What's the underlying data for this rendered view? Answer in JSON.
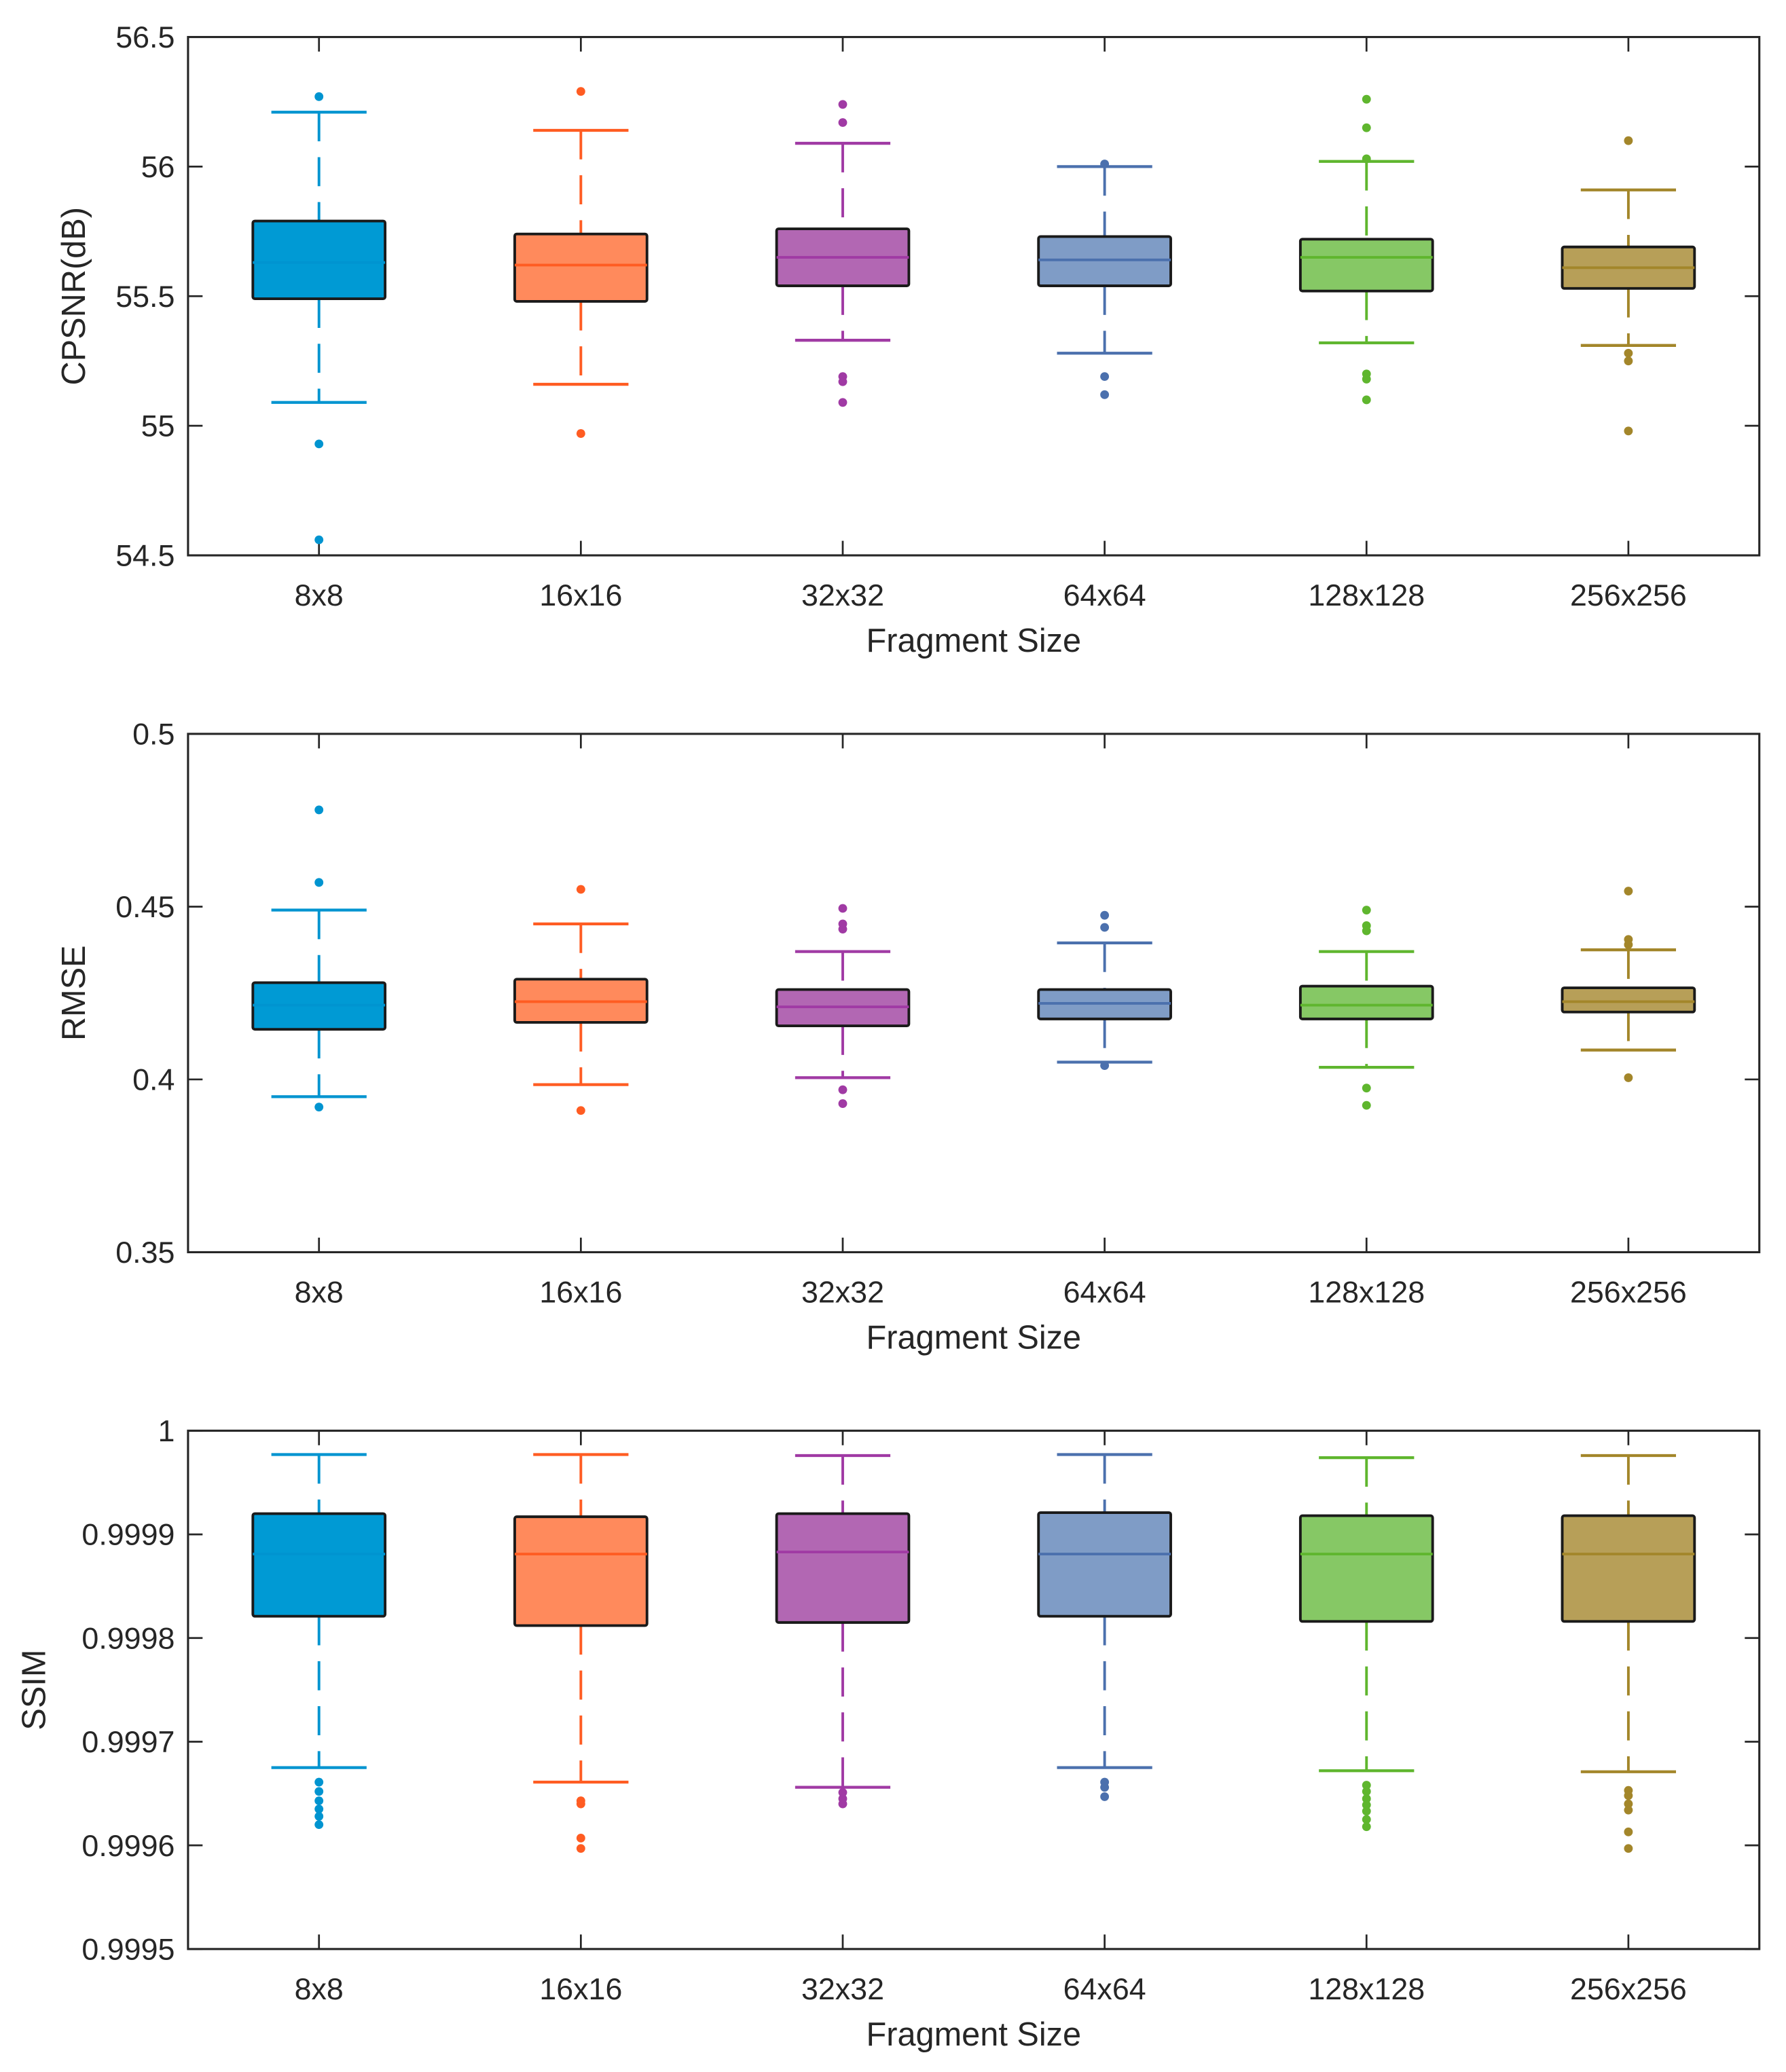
{
  "chart_data": [
    {
      "type": "box",
      "ylabel": "CPSNR(dB)",
      "xlabel": "Fragment Size",
      "categories": [
        "8x8",
        "16x16",
        "32x32",
        "64x64",
        "128x128",
        "256x256"
      ],
      "ylim": [
        54.5,
        56.5
      ],
      "yticks": [
        "54.5",
        "55",
        "55.5",
        "56",
        "56.5"
      ],
      "series": [
        {
          "whisker_high": 56.21,
          "q3": 55.79,
          "median": 55.63,
          "q1": 55.49,
          "whisker_low": 55.09,
          "outliers": [
            56.27,
            54.93,
            54.56
          ]
        },
        {
          "whisker_high": 56.14,
          "q3": 55.74,
          "median": 55.62,
          "q1": 55.48,
          "whisker_low": 55.16,
          "outliers": [
            56.29,
            54.97
          ]
        },
        {
          "whisker_high": 56.09,
          "q3": 55.76,
          "median": 55.65,
          "q1": 55.54,
          "whisker_low": 55.33,
          "outliers": [
            56.24,
            56.17,
            55.19,
            55.17,
            55.09
          ]
        },
        {
          "whisker_high": 56.0,
          "q3": 55.73,
          "median": 55.64,
          "q1": 55.54,
          "whisker_low": 55.28,
          "outliers": [
            56.01,
            55.19,
            55.12
          ]
        },
        {
          "whisker_high": 56.02,
          "q3": 55.72,
          "median": 55.65,
          "q1": 55.52,
          "whisker_low": 55.32,
          "outliers": [
            56.26,
            56.15,
            56.03,
            55.2,
            55.18,
            55.1
          ]
        },
        {
          "whisker_high": 55.91,
          "q3": 55.69,
          "median": 55.61,
          "q1": 55.53,
          "whisker_low": 55.31,
          "outliers": [
            56.1,
            55.28,
            55.25,
            54.98
          ]
        }
      ]
    },
    {
      "type": "box",
      "ylabel": "RMSE",
      "xlabel": "Fragment Size",
      "categories": [
        "8x8",
        "16x16",
        "32x32",
        "64x64",
        "128x128",
        "256x256"
      ],
      "ylim": [
        0.35,
        0.5
      ],
      "yticks": [
        "0.35",
        "0.4",
        "0.45",
        "0.5"
      ],
      "series": [
        {
          "whisker_high": 0.449,
          "q3": 0.428,
          "median": 0.4215,
          "q1": 0.4145,
          "whisker_low": 0.395,
          "outliers": [
            0.478,
            0.457,
            0.392
          ]
        },
        {
          "whisker_high": 0.445,
          "q3": 0.429,
          "median": 0.4225,
          "q1": 0.4165,
          "whisker_low": 0.3985,
          "outliers": [
            0.455,
            0.391
          ]
        },
        {
          "whisker_high": 0.437,
          "q3": 0.426,
          "median": 0.421,
          "q1": 0.4155,
          "whisker_low": 0.4005,
          "outliers": [
            0.4495,
            0.445,
            0.4435,
            0.397,
            0.393
          ]
        },
        {
          "whisker_high": 0.4395,
          "q3": 0.426,
          "median": 0.422,
          "q1": 0.4175,
          "whisker_low": 0.405,
          "outliers": [
            0.4475,
            0.444,
            0.404
          ]
        },
        {
          "whisker_high": 0.437,
          "q3": 0.427,
          "median": 0.4215,
          "q1": 0.4175,
          "whisker_low": 0.4035,
          "outliers": [
            0.449,
            0.4445,
            0.443,
            0.3975,
            0.3925
          ]
        },
        {
          "whisker_high": 0.4375,
          "q3": 0.4265,
          "median": 0.4225,
          "q1": 0.4195,
          "whisker_low": 0.4085,
          "outliers": [
            0.4545,
            0.4405,
            0.439,
            0.4005
          ]
        }
      ]
    },
    {
      "type": "box",
      "ylabel": "SSIM",
      "xlabel": "Fragment Size",
      "categories": [
        "8x8",
        "16x16",
        "32x32",
        "64x64",
        "128x128",
        "256x256"
      ],
      "ylim": [
        0.9995,
        1
      ],
      "yticks": [
        "0.9995",
        "0.9996",
        "0.9997",
        "0.9998",
        "0.9999",
        "1"
      ],
      "series": [
        {
          "whisker_high": 0.999977,
          "q3": 0.99992,
          "median": 0.999881,
          "q1": 0.999821,
          "whisker_low": 0.999675,
          "outliers": [
            0.999661,
            0.999652,
            0.999643,
            0.999635,
            0.999628,
            0.99962
          ]
        },
        {
          "whisker_high": 0.999977,
          "q3": 0.999917,
          "median": 0.999881,
          "q1": 0.999812,
          "whisker_low": 0.999661,
          "outliers": [
            0.999643,
            0.99964,
            0.999607,
            0.999597
          ]
        },
        {
          "whisker_high": 0.999976,
          "q3": 0.99992,
          "median": 0.999883,
          "q1": 0.999815,
          "whisker_low": 0.999656,
          "outliers": [
            0.999651,
            0.999645,
            0.99964
          ]
        },
        {
          "whisker_high": 0.999977,
          "q3": 0.999921,
          "median": 0.999881,
          "q1": 0.999821,
          "whisker_low": 0.999675,
          "outliers": [
            0.999661,
            0.999656,
            0.999647
          ]
        },
        {
          "whisker_high": 0.999974,
          "q3": 0.999918,
          "median": 0.999881,
          "q1": 0.999816,
          "whisker_low": 0.999672,
          "outliers": [
            0.999658,
            0.999652,
            0.999645,
            0.999639,
            0.999633,
            0.999625,
            0.999618
          ]
        },
        {
          "whisker_high": 0.999976,
          "q3": 0.999918,
          "median": 0.999881,
          "q1": 0.999816,
          "whisker_low": 0.999671,
          "outliers": [
            0.999653,
            0.999648,
            0.99964,
            0.999634,
            0.999613,
            0.999597
          ]
        }
      ]
    }
  ],
  "colors": {
    "fills": [
      "#009ad4",
      "#ff8a5c",
      "#b267b3",
      "#7f9cc6",
      "#86c865",
      "#b79f58"
    ],
    "strokes": [
      "#0094d0",
      "#ff5c22",
      "#a03aa4",
      "#4b70ad",
      "#5fb62e",
      "#a3862a"
    ],
    "axis": "#262626"
  }
}
